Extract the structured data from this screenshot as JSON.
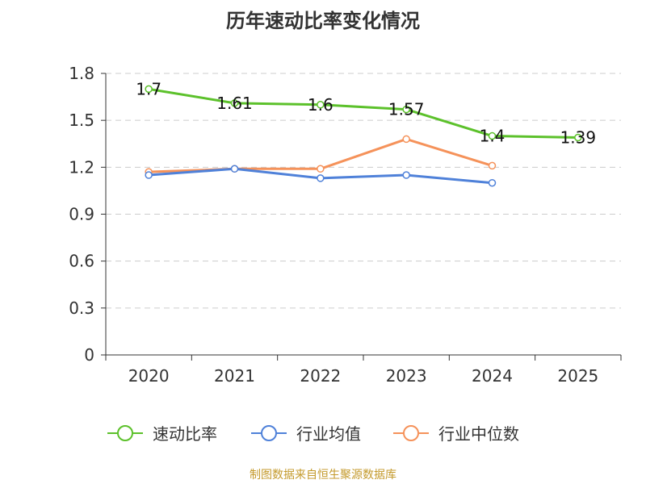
{
  "chart_data": {
    "type": "line",
    "title": "历年速动比率变化情况",
    "categories": [
      "2020",
      "2021",
      "2022",
      "2023",
      "2024",
      "2025"
    ],
    "ylim": [
      0,
      1.8
    ],
    "yticks": [
      0,
      0.3,
      0.6,
      0.9,
      1.2,
      1.5,
      1.8
    ],
    "ytick_labels": [
      "0",
      "0.3",
      "0.6",
      "0.9",
      "1.2",
      "1.5",
      "1.8"
    ],
    "grid": true,
    "legend_position": "bottom",
    "series": [
      {
        "name": "速动比率",
        "color": "#5cc12b",
        "values": [
          1.7,
          1.61,
          1.6,
          1.57,
          1.4,
          1.39
        ],
        "data_labels": [
          "1.7",
          "1.61",
          "1.6",
          "1.57",
          "1.4",
          "1.39"
        ]
      },
      {
        "name": "行业均值",
        "color": "#4f81d9",
        "values": [
          1.15,
          1.19,
          1.13,
          1.15,
          1.1,
          null
        ]
      },
      {
        "name": "行业中位数",
        "color": "#f5925a",
        "values": [
          1.17,
          1.19,
          1.19,
          1.38,
          1.21,
          null
        ]
      }
    ]
  },
  "source": "制图数据来自恒生聚源数据库"
}
